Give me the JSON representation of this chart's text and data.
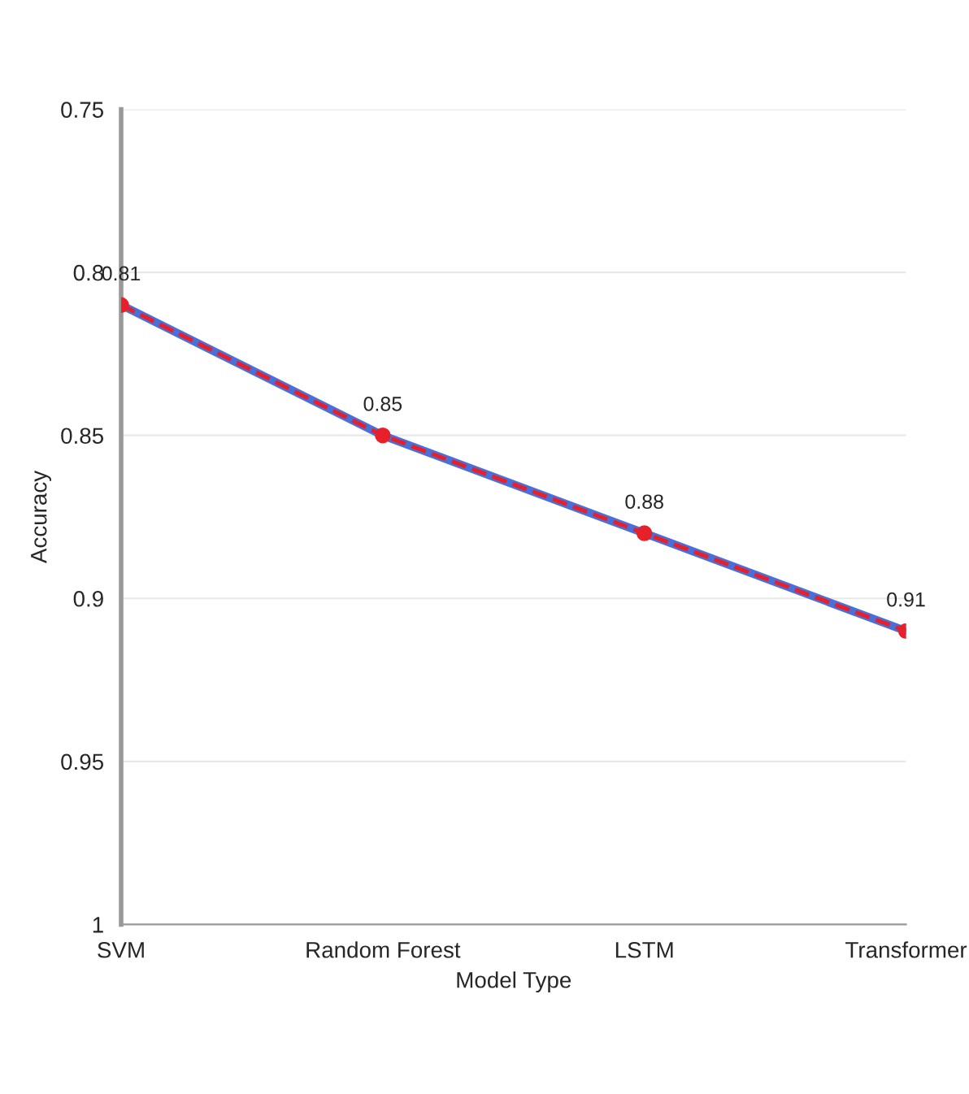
{
  "chart_data": {
    "type": "line",
    "xlabel": "Model Type",
    "ylabel": "Accuracy",
    "categories": [
      "SVM",
      "Random Forest",
      "LSTM",
      "Transformer"
    ],
    "series": [
      {
        "color": "#4a6fd8",
        "values": [
          0.81,
          0.85,
          0.88,
          0.91
        ],
        "line_style": "solid",
        "marker": "none",
        "value_labels": [
          null,
          null,
          null,
          null
        ]
      },
      {
        "color": "#e8202a",
        "values": [
          0.81,
          0.85,
          0.88,
          0.91
        ],
        "line_style": "dashed",
        "marker": "circle",
        "value_labels": [
          "0.81",
          "0.85",
          "0.88",
          "0.91"
        ]
      }
    ],
    "ylim": [
      1,
      0.75
    ],
    "yticks": [
      0.75,
      0.8,
      0.85,
      0.9,
      0.95,
      1
    ],
    "grid": "y",
    "legend": false
  }
}
